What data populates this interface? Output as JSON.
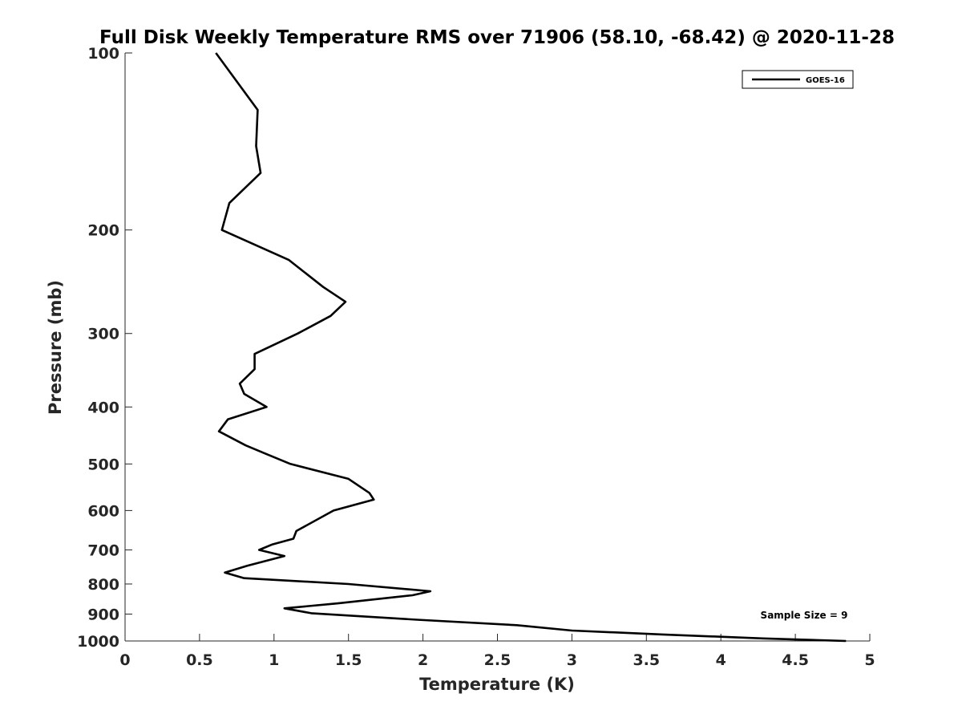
{
  "chart_data": {
    "type": "line",
    "title": "Full Disk Weekly Temperature RMS over 71906 (58.10, -68.42) @ 2020-11-28",
    "xlabel": "Temperature (K)",
    "ylabel": "Pressure (mb)",
    "xlim": [
      0,
      5
    ],
    "ylim": [
      100,
      1000
    ],
    "y_scale": "log",
    "y_reversed": true,
    "x_ticks": [
      "0",
      "0.5",
      "1",
      "1.5",
      "2",
      "2.5",
      "3",
      "3.5",
      "4",
      "4.5",
      "5"
    ],
    "y_ticks": [
      "100",
      "200",
      "300",
      "400",
      "500",
      "600",
      "700",
      "800",
      "900",
      "1000"
    ],
    "legend_position": "top-right",
    "grid": false,
    "annotation": "Sample Size = 9",
    "series": [
      {
        "name": "GOES-16",
        "color": "#000000",
        "points": [
          [
            0.61,
            100
          ],
          [
            0.89,
            125
          ],
          [
            0.88,
            144
          ],
          [
            0.91,
            160
          ],
          [
            0.7,
            180
          ],
          [
            0.65,
            200
          ],
          [
            1.1,
            225
          ],
          [
            1.33,
            250
          ],
          [
            1.48,
            265
          ],
          [
            1.38,
            280
          ],
          [
            1.16,
            300
          ],
          [
            0.87,
            325
          ],
          [
            0.87,
            345
          ],
          [
            0.77,
            365
          ],
          [
            0.8,
            380
          ],
          [
            0.95,
            400
          ],
          [
            0.69,
            420
          ],
          [
            0.63,
            440
          ],
          [
            0.81,
            465
          ],
          [
            0.94,
            480
          ],
          [
            1.11,
            500
          ],
          [
            1.5,
            530
          ],
          [
            1.64,
            560
          ],
          [
            1.67,
            575
          ],
          [
            1.4,
            600
          ],
          [
            1.15,
            650
          ],
          [
            1.13,
            670
          ],
          [
            0.99,
            685
          ],
          [
            0.9,
            700
          ],
          [
            1.07,
            717
          ],
          [
            0.82,
            745
          ],
          [
            0.67,
            765
          ],
          [
            0.8,
            782
          ],
          [
            1.5,
            800
          ],
          [
            2.05,
            823
          ],
          [
            1.93,
            836
          ],
          [
            1.43,
            863
          ],
          [
            1.07,
            880
          ],
          [
            1.25,
            897
          ],
          [
            1.96,
            920
          ],
          [
            2.63,
            940
          ],
          [
            3.0,
            960
          ],
          [
            3.61,
            975
          ],
          [
            4.28,
            990
          ],
          [
            4.84,
            1000
          ]
        ]
      }
    ]
  }
}
